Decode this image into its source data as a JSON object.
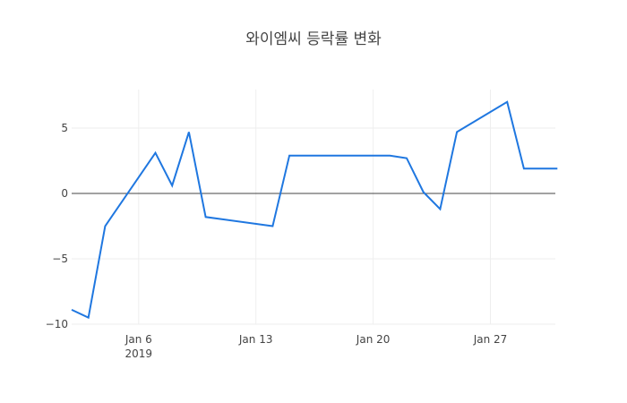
{
  "chart_data": {
    "type": "line",
    "title": "와이엠씨 등락률 변화",
    "xlabel": "",
    "ylabel": "",
    "x": [
      "2019-01-02",
      "2019-01-03",
      "2019-01-04",
      "2019-01-07",
      "2019-01-08",
      "2019-01-09",
      "2019-01-10",
      "2019-01-14",
      "2019-01-15",
      "2019-01-16",
      "2019-01-17",
      "2019-01-18",
      "2019-01-21",
      "2019-01-22",
      "2019-01-23",
      "2019-01-24",
      "2019-01-25",
      "2019-01-28",
      "2019-01-29",
      "2019-01-30",
      "2019-01-31"
    ],
    "series": [
      {
        "name": "등락률",
        "color": "#1f77e0",
        "values": [
          -8.9,
          -9.5,
          -2.5,
          3.1,
          0.6,
          4.7,
          -1.8,
          -2.5,
          2.9,
          2.9,
          2.9,
          2.9,
          2.9,
          2.7,
          0.1,
          -1.2,
          4.7,
          7.0,
          1.9,
          1.9,
          1.9
        ]
      }
    ],
    "x_tick_labels": [
      "Jan 6\n2019",
      "Jan 13",
      "Jan 20",
      "Jan 27"
    ],
    "x_tick_dates": [
      "2019-01-06",
      "2019-01-13",
      "2019-01-20",
      "2019-01-27"
    ],
    "y_tick_labels": [
      "5",
      "0",
      "−5",
      "−10"
    ],
    "y_tick_values": [
      5,
      0,
      -5,
      -10
    ],
    "ylim": [
      -10,
      8
    ],
    "xlim": [
      "2019-01-02",
      "2019-01-31"
    ],
    "grid": true,
    "legend": null,
    "zero_line": true
  },
  "labels": {
    "title": "와이엠씨 등락률 변화",
    "x_ticks": [
      {
        "line1": "Jan 6",
        "line2": "2019"
      },
      {
        "line1": "Jan 13",
        "line2": ""
      },
      {
        "line1": "Jan 20",
        "line2": ""
      },
      {
        "line1": "Jan 27",
        "line2": ""
      }
    ],
    "y_ticks": [
      "5",
      "0",
      "−5",
      "−10"
    ]
  }
}
